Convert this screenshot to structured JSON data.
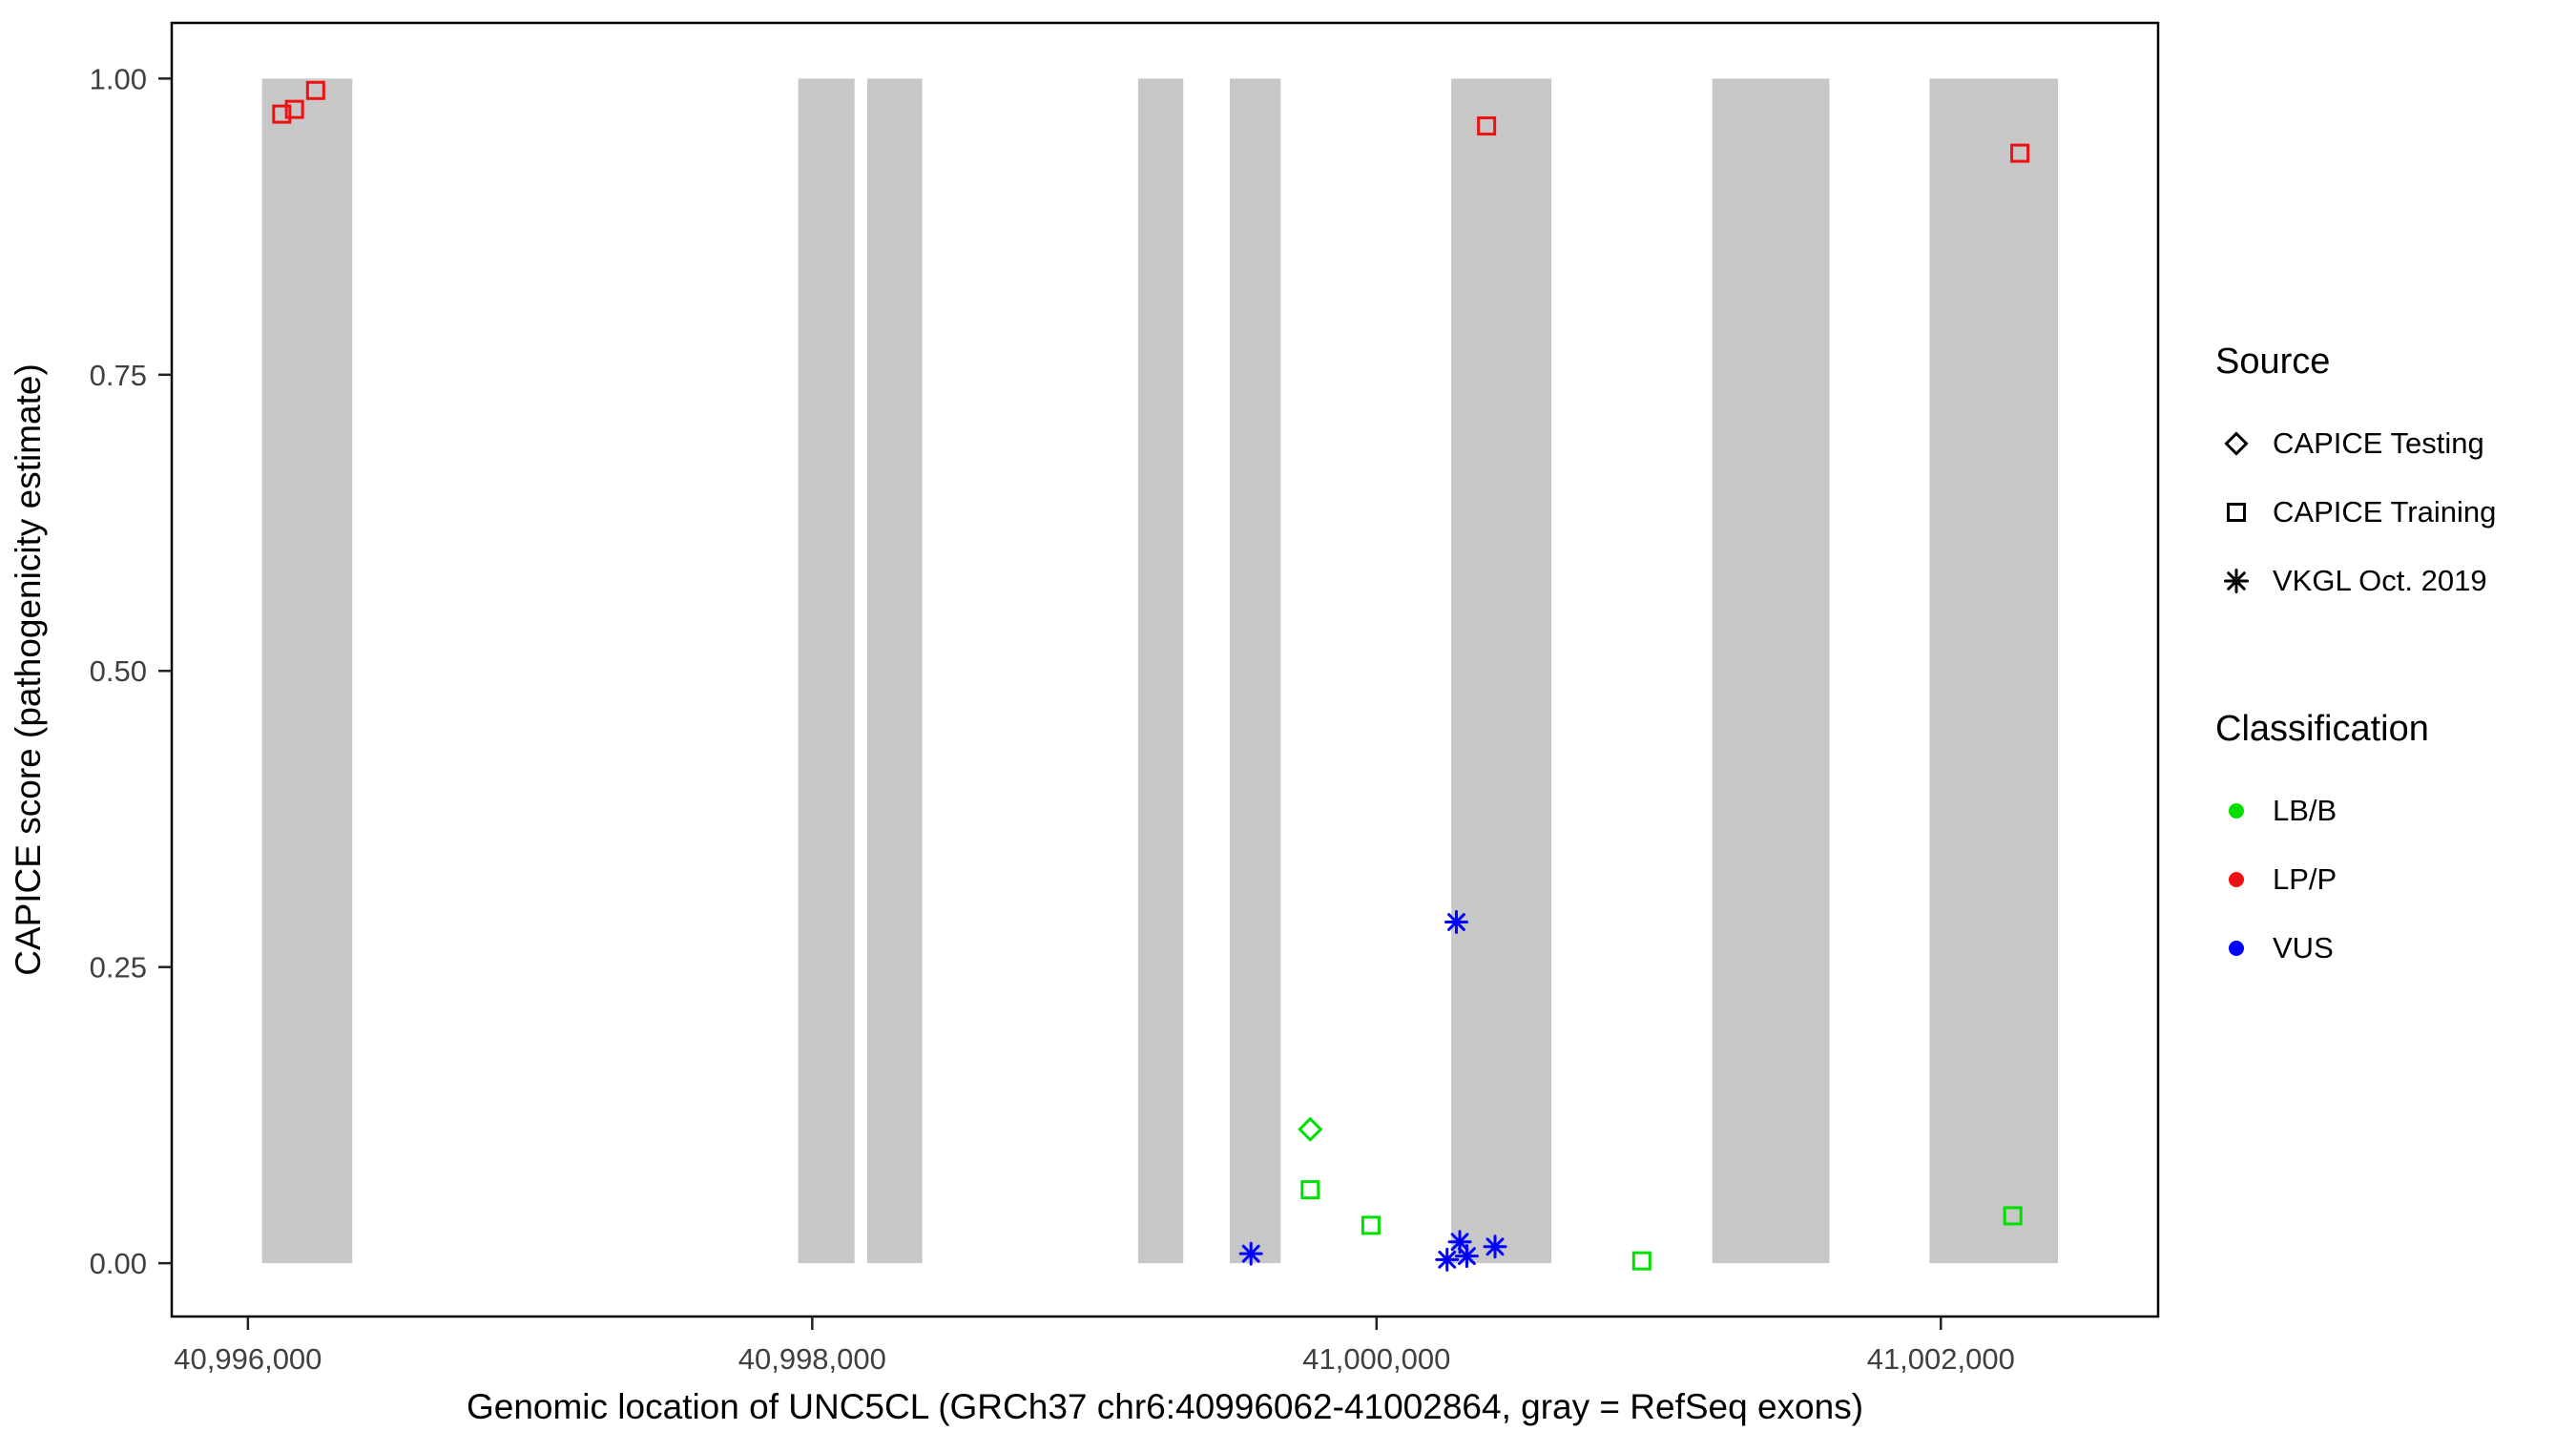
{
  "chart_data": {
    "type": "scatter",
    "title": "",
    "xlabel": "Genomic location of UNC5CL (GRCh37 chr6:40996062-41002864, gray = RefSeq exons)",
    "ylabel": "CAPICE score (pathogenicity estimate)",
    "xlim": [
      40995730,
      41002770
    ],
    "ylim": [
      -0.045,
      1.047
    ],
    "grid": false,
    "panel_border_color": "#000000",
    "exon_color": "#C7C7C7",
    "tick_label_color": "#404040",
    "x_ticks": [
      {
        "value": 40996000,
        "label": "40,996,000"
      },
      {
        "value": 40998000,
        "label": "40,998,000"
      },
      {
        "value": 41000000,
        "label": "41,000,000"
      },
      {
        "value": 41002000,
        "label": "41,002,000"
      }
    ],
    "y_ticks": [
      {
        "value": 0.0,
        "label": "0.00"
      },
      {
        "value": 0.25,
        "label": "0.25"
      },
      {
        "value": 0.5,
        "label": "0.50"
      },
      {
        "value": 0.75,
        "label": "0.75"
      },
      {
        "value": 1.0,
        "label": "1.00"
      }
    ],
    "exons": [
      [
        40996050,
        40996370
      ],
      [
        40997950,
        40998150
      ],
      [
        40998195,
        40998390
      ],
      [
        40999155,
        40999315
      ],
      [
        40999480,
        40999660
      ],
      [
        41000265,
        41000620
      ],
      [
        41001190,
        41001605
      ],
      [
        41001960,
        41002415
      ]
    ],
    "series": [
      {
        "name": "CAPICE Training / LP-P",
        "source": "CAPICE Training",
        "classification": "LP/P",
        "marker": "square",
        "color": "#EE1111",
        "points": [
          [
            40996120,
            0.97
          ],
          [
            40996165,
            0.974
          ],
          [
            40996240,
            0.99
          ],
          [
            41000390,
            0.96
          ],
          [
            41002280,
            0.937
          ]
        ]
      },
      {
        "name": "CAPICE Testing / LB-B",
        "source": "CAPICE Testing",
        "classification": "LB/B",
        "marker": "diamond",
        "color": "#00E000",
        "points": [
          [
            40999765,
            0.113
          ]
        ]
      },
      {
        "name": "CAPICE Training / LB-B",
        "source": "CAPICE Training",
        "classification": "LB/B",
        "marker": "square",
        "color": "#00E000",
        "points": [
          [
            40999765,
            0.062
          ],
          [
            40999980,
            0.032
          ],
          [
            41000940,
            0.002
          ],
          [
            41002255,
            0.04
          ]
        ]
      },
      {
        "name": "VKGL Oct. 2019 / VUS",
        "source": "VKGL Oct. 2019",
        "classification": "VUS",
        "marker": "asterisk",
        "color": "#0000FF",
        "points": [
          [
            40999555,
            0.008
          ],
          [
            41000283,
            0.288
          ],
          [
            41000250,
            0.003
          ],
          [
            41000295,
            0.018
          ],
          [
            41000320,
            0.006
          ],
          [
            41000420,
            0.014
          ]
        ]
      }
    ],
    "legend": {
      "source_title": "Source",
      "source_items": [
        {
          "label": "CAPICE Testing",
          "marker": "diamond"
        },
        {
          "label": "CAPICE Training",
          "marker": "square"
        },
        {
          "label": "VKGL Oct. 2019",
          "marker": "asterisk"
        }
      ],
      "classification_title": "Classification",
      "classification_items": [
        {
          "label": "LB/B",
          "color": "#00E000"
        },
        {
          "label": "LP/P",
          "color": "#EE1111"
        },
        {
          "label": "VUS",
          "color": "#0000FF"
        }
      ]
    }
  }
}
